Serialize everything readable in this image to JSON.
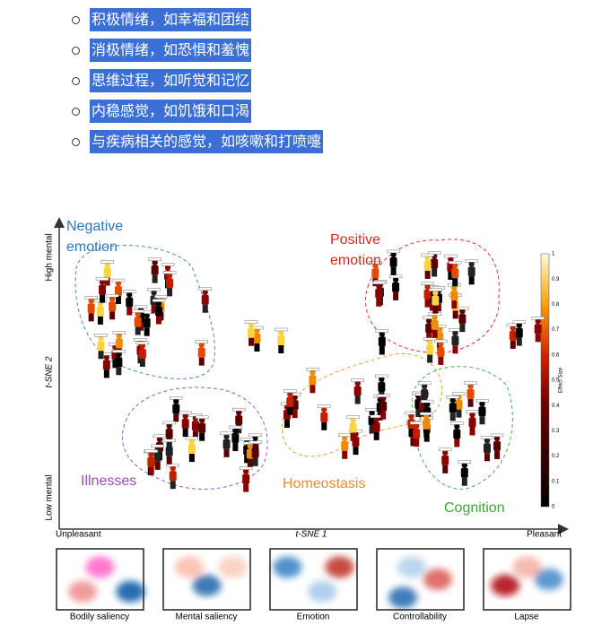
{
  "list": {
    "items": [
      "积极情绪，如幸福和团结",
      "消极情绪，如恐惧和羞愧",
      "思维过程，如听觉和记忆",
      "内稳感觉，如饥饿和口渴",
      "与疾病相关的感觉，如咳嗽和打喷嚏"
    ]
  },
  "figure": {
    "y_axis": {
      "top": "High mental",
      "title": "t-SNE 2",
      "bottom": "Low mental"
    },
    "x_axis": {
      "left": "Unpleasant",
      "title": "t-SNE 1",
      "right": "Pleasant"
    },
    "clusters": [
      {
        "lines": [
          "Negative",
          "emotion"
        ]
      },
      {
        "lines": [
          "Positive",
          "emotion"
        ]
      },
      {
        "lines": [
          "Illnesses"
        ]
      },
      {
        "lines": [
          "Homeostasis"
        ]
      },
      {
        "lines": [
          "Cognition"
        ]
      }
    ],
    "colorbar": {
      "title": "Effect Size",
      "ticks": [
        "1",
        "0.9",
        "0.8",
        "0.7",
        "0.6",
        "0.5",
        "0.4",
        "0.3",
        "0.2",
        "0.1",
        "0"
      ]
    },
    "panels": [
      "Bodily saliency",
      "Mental saliency",
      "Emotion",
      "Controllability",
      "Lapse"
    ]
  }
}
